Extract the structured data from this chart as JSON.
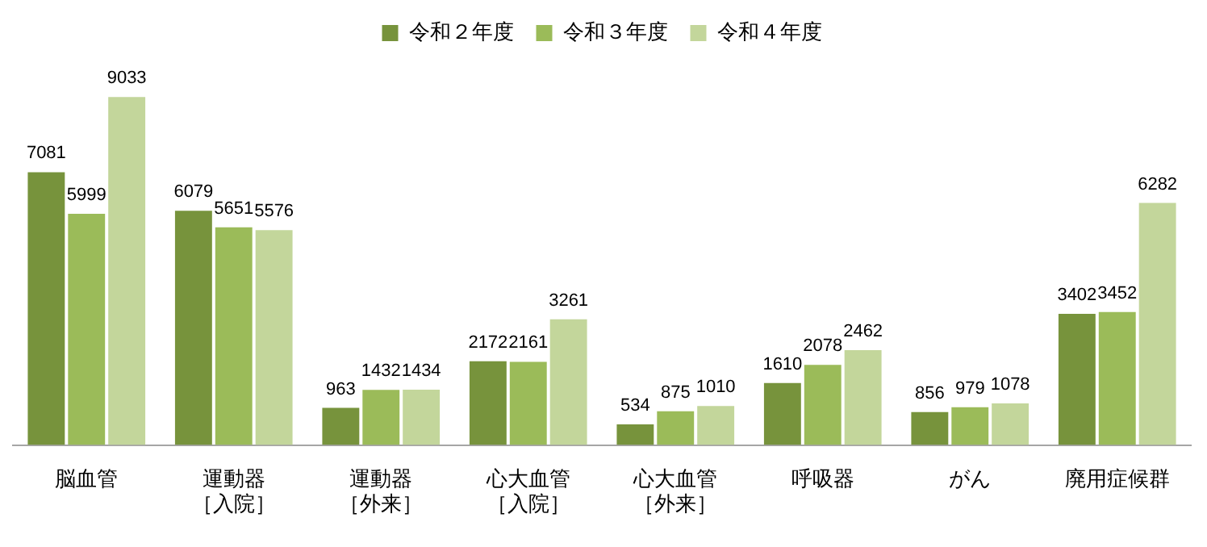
{
  "chart_data": {
    "type": "bar",
    "categories": [
      "脳血管",
      "運動器［入院］",
      "運動器［外来］",
      "心大血管［入院］",
      "心大血管［外来］",
      "呼吸器",
      "がん",
      "廃用症候群"
    ],
    "series": [
      {
        "name": "令和２年度",
        "color": "#77933c",
        "values": [
          7081,
          6079,
          963,
          2172,
          534,
          1610,
          856,
          3402
        ]
      },
      {
        "name": "令和３年度",
        "color": "#9bbb59",
        "values": [
          5999,
          5651,
          1432,
          2161,
          875,
          2078,
          979,
          3452
        ]
      },
      {
        "name": "令和４年度",
        "color": "#c3d69b",
        "values": [
          9033,
          5576,
          1434,
          3261,
          1010,
          2462,
          1078,
          6282
        ]
      }
    ],
    "data_labels": true,
    "legend": "top",
    "grid": false
  }
}
